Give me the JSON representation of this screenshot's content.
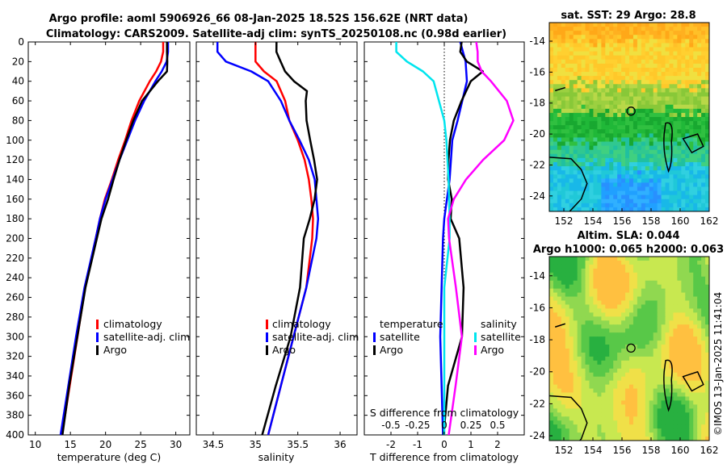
{
  "header": {
    "title_line1": "Argo profile: aoml 5906926_66 08-Jan-2025 18.52S 156.62E (NRT data)",
    "title_line2": "Climatology: CARS2009. Satellite-adj clim: synTS_20250108.nc (0.98d earlier)"
  },
  "colors": {
    "climatology": "#ff0000",
    "satellite": "#0000ff",
    "argo": "#000000",
    "satellite_s": "#00e5ee",
    "argo_s": "#ff00ff"
  },
  "chart_data": [
    {
      "type": "line",
      "id": "temperature_profile",
      "xlabel": "temperature (deg C)",
      "ylim": [
        0,
        400
      ],
      "xlim": [
        9,
        32
      ],
      "xticks": [
        "10",
        "15",
        "20",
        "25",
        "30"
      ],
      "yticks": [
        "0",
        "20",
        "40",
        "60",
        "80",
        "100",
        "120",
        "140",
        "160",
        "180",
        "200",
        "220",
        "240",
        "260",
        "280",
        "300",
        "320",
        "340",
        "360",
        "380",
        "400"
      ],
      "legend": [
        "climatology",
        "satellite-adj. clim",
        "Argo"
      ],
      "series": [
        {
          "name": "climatology",
          "depth": [
            0,
            10,
            20,
            30,
            40,
            60,
            80,
            100,
            120,
            140,
            160,
            180,
            200,
            250,
            300,
            350,
            400
          ],
          "values": [
            28.2,
            28.2,
            27.9,
            27.2,
            26.3,
            24.8,
            23.7,
            22.8,
            21.8,
            20.9,
            19.9,
            19.2,
            18.6,
            17.1,
            16.0,
            14.9,
            13.8
          ]
        },
        {
          "name": "satellite-adj. clim",
          "depth": [
            0,
            10,
            20,
            30,
            40,
            60,
            80,
            100,
            120,
            140,
            160,
            180,
            200,
            250,
            300,
            350,
            400
          ],
          "values": [
            28.9,
            28.9,
            28.7,
            28.0,
            27.1,
            25.5,
            24.2,
            23.1,
            22.0,
            21.0,
            20.0,
            19.2,
            18.6,
            17.0,
            15.8,
            14.7,
            13.6
          ]
        },
        {
          "name": "Argo",
          "depth": [
            0,
            10,
            20,
            30,
            40,
            60,
            80,
            100,
            120,
            140,
            160,
            180,
            200,
            250,
            300,
            350,
            400
          ],
          "values": [
            28.8,
            28.8,
            28.8,
            28.7,
            27.4,
            25.2,
            24.0,
            23.0,
            22.0,
            21.1,
            20.3,
            19.4,
            18.8,
            17.2,
            16.0,
            14.8,
            13.8
          ]
        }
      ]
    },
    {
      "type": "line",
      "id": "salinity_profile",
      "xlabel": "salinity",
      "ylim": [
        0,
        400
      ],
      "xlim": [
        34.3,
        36.2
      ],
      "xticks": [
        "34.5",
        "35",
        "35.5",
        "36"
      ],
      "legend": [
        "climatology",
        "satellite-adj. clim",
        "Argo"
      ],
      "series": [
        {
          "name": "climatology",
          "depth": [
            0,
            10,
            20,
            30,
            40,
            60,
            80,
            100,
            120,
            140,
            160,
            180,
            200,
            250,
            300,
            350,
            400
          ],
          "values": [
            35.0,
            35.0,
            35.0,
            35.1,
            35.25,
            35.35,
            35.4,
            35.5,
            35.58,
            35.63,
            35.66,
            35.68,
            35.67,
            35.6,
            35.45,
            35.3,
            35.15
          ]
        },
        {
          "name": "satellite-adj. clim",
          "depth": [
            0,
            10,
            20,
            30,
            40,
            60,
            80,
            100,
            120,
            140,
            160,
            180,
            200,
            250,
            300,
            350,
            400
          ],
          "values": [
            34.55,
            34.55,
            34.65,
            34.95,
            35.15,
            35.3,
            35.4,
            35.52,
            35.63,
            35.7,
            35.72,
            35.74,
            35.72,
            35.6,
            35.45,
            35.3,
            35.15
          ]
        },
        {
          "name": "Argo",
          "depth": [
            0,
            10,
            20,
            30,
            40,
            50,
            60,
            80,
            100,
            120,
            140,
            160,
            180,
            200,
            250,
            300,
            350,
            400
          ],
          "values": [
            35.3,
            35.3,
            35.3,
            35.3,
            35.4,
            35.6,
            35.64,
            35.66,
            35.66,
            35.65,
            35.67,
            35.68,
            35.68,
            35.63,
            35.55,
            35.38,
            35.18,
            35.05
          ]
        }
      ]
    },
    {
      "type": "line",
      "id": "difference_profile",
      "xlabel": "T difference from climatology",
      "xlabel_top": "S difference from climatology",
      "ylim": [
        0,
        400
      ],
      "xlim": [
        -3,
        3
      ],
      "xticks": [
        "-2",
        "-1",
        "0",
        "1",
        "2"
      ],
      "xticks_top": [
        "-0.5",
        "-0.25",
        "0",
        "0.25",
        "0.5"
      ],
      "legend_t_title": "temperature",
      "legend_s_title": "salinity",
      "legend_t": [
        "satellite",
        "Argo"
      ],
      "legend_s": [
        "satellite",
        "Argo"
      ],
      "series": [
        {
          "name": "T satellite",
          "depth": [
            0,
            10,
            20,
            40,
            80,
            100,
            140,
            180,
            200,
            250,
            300,
            400
          ],
          "values": [
            0.6,
            0.7,
            0.8,
            0.85,
            0.5,
            0.3,
            0.2,
            0.0,
            -0.05,
            -0.1,
            -0.15,
            -0.05
          ]
        },
        {
          "name": "T Argo",
          "depth": [
            0,
            10,
            20,
            30,
            40,
            60,
            80,
            100,
            120,
            140,
            160,
            180,
            200,
            250,
            300,
            350,
            400
          ],
          "values": [
            0.6,
            0.6,
            0.9,
            1.5,
            1.0,
            0.6,
            0.3,
            0.2,
            0.2,
            0.2,
            0.3,
            0.2,
            0.5,
            0.7,
            0.7,
            0.2,
            0.0
          ]
        },
        {
          "name": "S satellite",
          "depth": [
            0,
            10,
            20,
            30,
            40,
            60,
            80,
            100,
            140,
            180,
            200,
            250,
            300,
            400
          ],
          "values": [
            -0.45,
            -0.45,
            -0.35,
            -0.2,
            -0.1,
            -0.05,
            0.0,
            0.02,
            0.04,
            0.05,
            0.05,
            0.0,
            0.0,
            0.0
          ]
        },
        {
          "name": "S Argo",
          "depth": [
            0,
            10,
            20,
            30,
            40,
            60,
            80,
            100,
            120,
            140,
            160,
            180,
            200,
            250,
            300,
            350,
            400
          ],
          "values": [
            0.3,
            0.3,
            0.3,
            0.35,
            0.45,
            0.6,
            0.65,
            0.55,
            0.35,
            0.2,
            0.1,
            0.05,
            0.05,
            0.1,
            0.15,
            0.1,
            0.05
          ]
        }
      ]
    },
    {
      "type": "heatmap",
      "id": "sst_map",
      "title": "sat. SST: 29 Argo: 28.8",
      "xlim": [
        151,
        162
      ],
      "ylim": [
        -25,
        -12.8
      ],
      "xticks": [
        "152",
        "154",
        "156",
        "158",
        "160",
        "162"
      ],
      "yticks": [
        "-14",
        "-16",
        "-18",
        "-20",
        "-22",
        "-24"
      ],
      "marker": {
        "lon": 156.62,
        "lat": -18.52
      }
    },
    {
      "type": "heatmap",
      "id": "sla_map",
      "title_line1": "Altim. SLA: 0.044",
      "title_line2": "Argo h1000: 0.065 h2000: 0.063",
      "xlim": [
        151,
        162
      ],
      "ylim": [
        -24.3,
        -12.8
      ],
      "xticks": [
        "152",
        "154",
        "156",
        "158",
        "160",
        "162"
      ],
      "yticks": [
        "-14",
        "-16",
        "-18",
        "-20",
        "-22",
        "-24"
      ],
      "marker": {
        "lon": 156.62,
        "lat": -18.52
      }
    }
  ],
  "footer": {
    "credit": "©IMOS 13-Jan-2025 11:41:04"
  }
}
